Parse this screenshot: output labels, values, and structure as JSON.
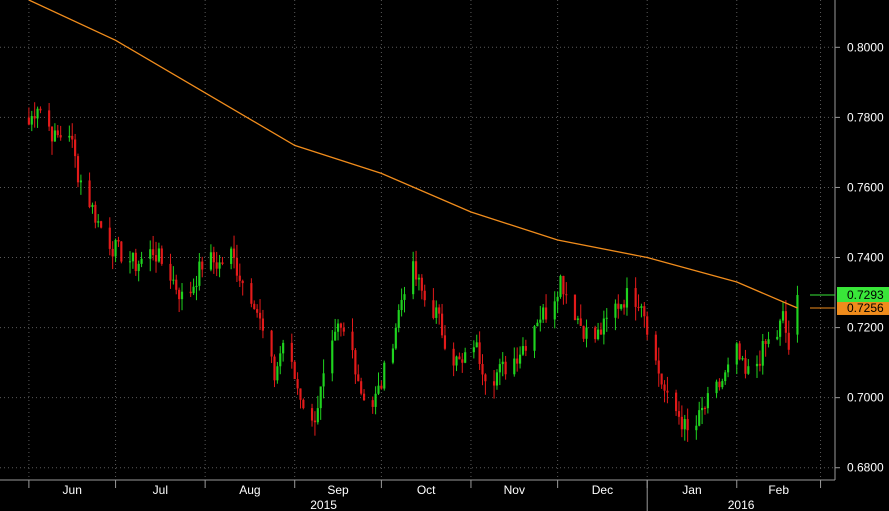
{
  "chart_data": {
    "type": "candlestick",
    "x_tick_labels": [
      "Jun",
      "Jul",
      "Aug",
      "Sep",
      "Oct",
      "Nov",
      "Dec",
      "Jan",
      "Feb"
    ],
    "year_labels": [
      "2015",
      "2016"
    ],
    "y_tick_labels": [
      "0.8000",
      "0.7800",
      "0.7600",
      "0.7400",
      "0.7200",
      "0.7000",
      "0.6800"
    ],
    "ylim": [
      0.6765,
      0.8135
    ],
    "grid": true,
    "last_price_label": "0.7293",
    "moving_average_label": "0.7256",
    "colors": {
      "up": "#1fd31f",
      "down": "#e31a1a",
      "moving_average": "#f08c1c",
      "grid": "#5a5a5a",
      "axis": "#9a9a9a",
      "last_price_badge": "#39e639",
      "moving_average_badge": "#f08c1c"
    },
    "moving_average_points": [
      [
        "2015-06-01",
        0.8135
      ],
      [
        "2015-07-01",
        0.802
      ],
      [
        "2015-08-01",
        0.787
      ],
      [
        "2015-09-01",
        0.772
      ],
      [
        "2015-10-01",
        0.764
      ],
      [
        "2015-11-01",
        0.753
      ],
      [
        "2015-12-01",
        0.745
      ],
      [
        "2016-01-01",
        0.74
      ],
      [
        "2016-02-01",
        0.733
      ],
      [
        "2016-02-22",
        0.7256
      ]
    ],
    "candle_path": [
      [
        "2015-06-01",
        0.778
      ],
      [
        "2015-06-04",
        0.784
      ],
      [
        "2015-06-10",
        0.774
      ],
      [
        "2015-06-15",
        0.776
      ],
      [
        "2015-06-18",
        0.764
      ],
      [
        "2015-06-25",
        0.75
      ],
      [
        "2015-06-30",
        0.743
      ],
      [
        "2015-07-08",
        0.738
      ],
      [
        "2015-07-14",
        0.742
      ],
      [
        "2015-07-20",
        0.735
      ],
      [
        "2015-07-25",
        0.727
      ],
      [
        "2015-08-01",
        0.74
      ],
      [
        "2015-08-06",
        0.738
      ],
      [
        "2015-08-10",
        0.741
      ],
      [
        "2015-08-14",
        0.733
      ],
      [
        "2015-08-18",
        0.728
      ],
      [
        "2015-08-22",
        0.715
      ],
      [
        "2015-08-25",
        0.706
      ],
      [
        "2015-08-28",
        0.716
      ],
      [
        "2015-09-02",
        0.703
      ],
      [
        "2015-09-07",
        0.692
      ],
      [
        "2015-09-12",
        0.708
      ],
      [
        "2015-09-16",
        0.719
      ],
      [
        "2015-09-20",
        0.717
      ],
      [
        "2015-09-24",
        0.702
      ],
      [
        "2015-09-28",
        0.698
      ],
      [
        "2015-10-01",
        0.704
      ],
      [
        "2015-10-05",
        0.717
      ],
      [
        "2015-10-09",
        0.732
      ],
      [
        "2015-10-12",
        0.736
      ],
      [
        "2015-10-16",
        0.728
      ],
      [
        "2015-10-20",
        0.724
      ],
      [
        "2015-10-25",
        0.712
      ],
      [
        "2015-10-29",
        0.709
      ],
      [
        "2015-11-02",
        0.716
      ],
      [
        "2015-11-07",
        0.705
      ],
      [
        "2015-11-10",
        0.707
      ],
      [
        "2015-11-15",
        0.71
      ],
      [
        "2015-11-20",
        0.716
      ],
      [
        "2015-11-24",
        0.723
      ],
      [
        "2015-11-28",
        0.725
      ],
      [
        "2015-12-02",
        0.734
      ],
      [
        "2015-12-05",
        0.728
      ],
      [
        "2015-12-09",
        0.721
      ],
      [
        "2015-12-13",
        0.716
      ],
      [
        "2015-12-17",
        0.72
      ],
      [
        "2015-12-21",
        0.726
      ],
      [
        "2015-12-25",
        0.729
      ],
      [
        "2015-12-30",
        0.728
      ],
      [
        "2016-01-04",
        0.71
      ],
      [
        "2016-01-08",
        0.699
      ],
      [
        "2016-01-12",
        0.695
      ],
      [
        "2016-01-16",
        0.688
      ],
      [
        "2016-01-20",
        0.696
      ],
      [
        "2016-01-24",
        0.701
      ],
      [
        "2016-01-28",
        0.706
      ],
      [
        "2016-02-01",
        0.713
      ],
      [
        "2016-02-04",
        0.706
      ],
      [
        "2016-02-08",
        0.71
      ],
      [
        "2016-02-11",
        0.715
      ],
      [
        "2016-02-15",
        0.718
      ],
      [
        "2016-02-17",
        0.723
      ],
      [
        "2016-02-19",
        0.714
      ],
      [
        "2016-02-21",
        0.719
      ],
      [
        "2016-02-22",
        0.7293
      ]
    ]
  }
}
